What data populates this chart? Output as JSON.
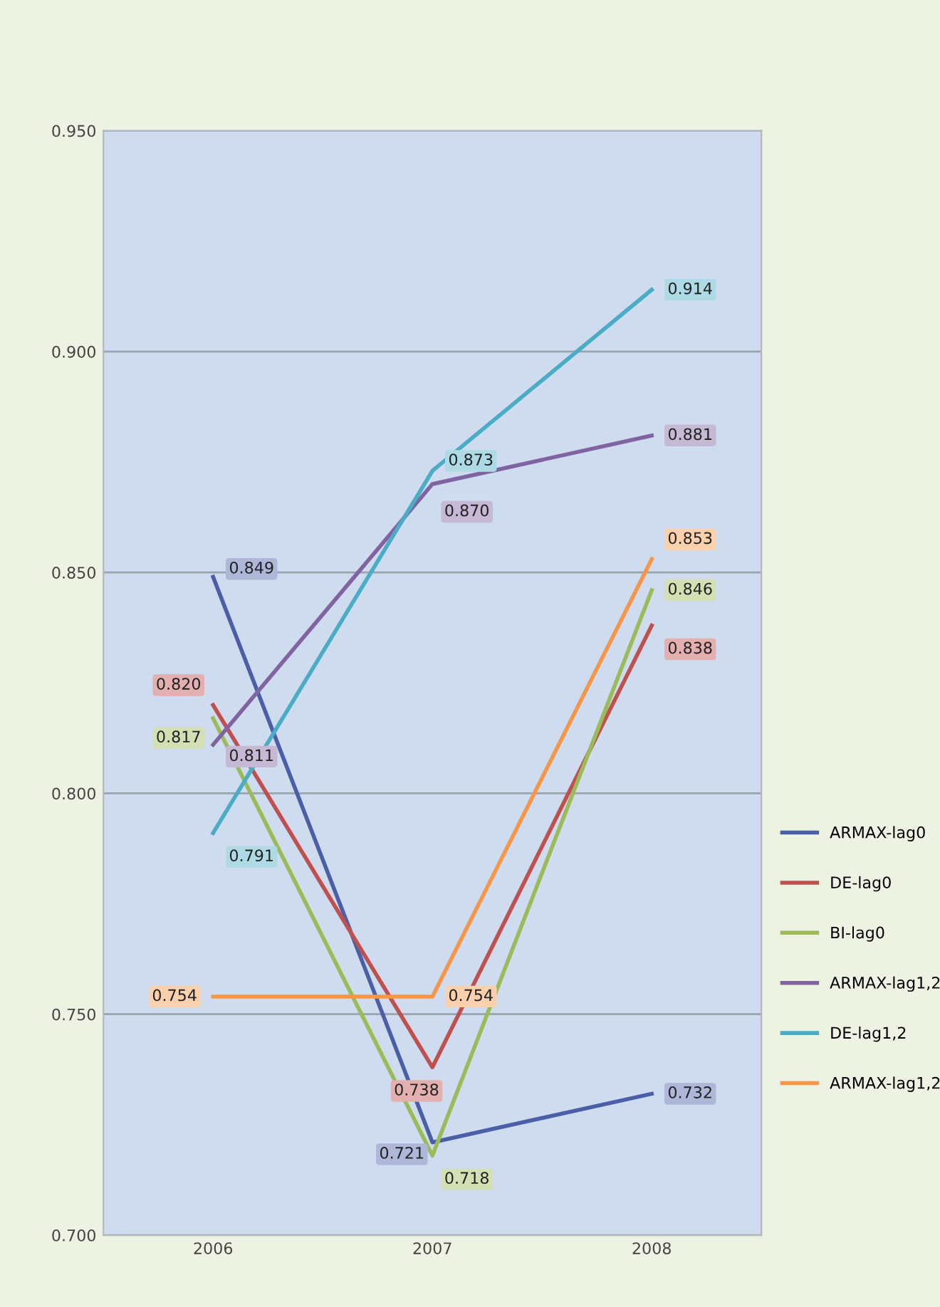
{
  "chart_data": {
    "type": "line",
    "categories": [
      "2006",
      "2007",
      "2008"
    ],
    "series": [
      {
        "name": "ARMAX-lag0",
        "color": "#4a5fa8",
        "values": [
          0.849,
          0.721,
          0.732
        ],
        "value_labels": [
          "0.849",
          "0.721",
          "0.732"
        ]
      },
      {
        "name": "DE-lag0",
        "color": "#c0504d",
        "values": [
          0.82,
          0.738,
          0.838
        ],
        "value_labels": [
          "0.820",
          "0.738",
          "0.838"
        ]
      },
      {
        "name": "BI-lag0",
        "color": "#9bbb59",
        "values": [
          0.817,
          0.718,
          0.846
        ],
        "value_labels": [
          "0.817",
          "0.718",
          "0.846"
        ]
      },
      {
        "name": "ARMAX-lag1,2",
        "color": "#8064a2",
        "values": [
          0.811,
          0.87,
          0.881
        ],
        "value_labels": [
          "0.811",
          "0.870",
          "0.881"
        ]
      },
      {
        "name": "DE-lag1,2",
        "color": "#4bacc6",
        "values": [
          0.791,
          0.873,
          0.914
        ],
        "value_labels": [
          "0.791",
          "0.873",
          "0.914"
        ]
      },
      {
        "name": "ARMAX-lag1,2",
        "color": "#f79646",
        "values": [
          0.754,
          0.754,
          0.853
        ],
        "value_labels": [
          "0.754",
          "0.754",
          "0.853"
        ]
      }
    ],
    "ylim": [
      0.7,
      0.95
    ],
    "yticks": [
      {
        "value": 0.7,
        "label": "0.700"
      },
      {
        "value": 0.75,
        "label": "0.750"
      },
      {
        "value": 0.8,
        "label": "0.800"
      },
      {
        "value": 0.85,
        "label": "0.850"
      },
      {
        "value": 0.9,
        "label": "0.900"
      },
      {
        "value": 0.95,
        "label": "0.950"
      }
    ],
    "grid": "y",
    "legend": "right",
    "marker": "none",
    "line_style": "solid"
  }
}
